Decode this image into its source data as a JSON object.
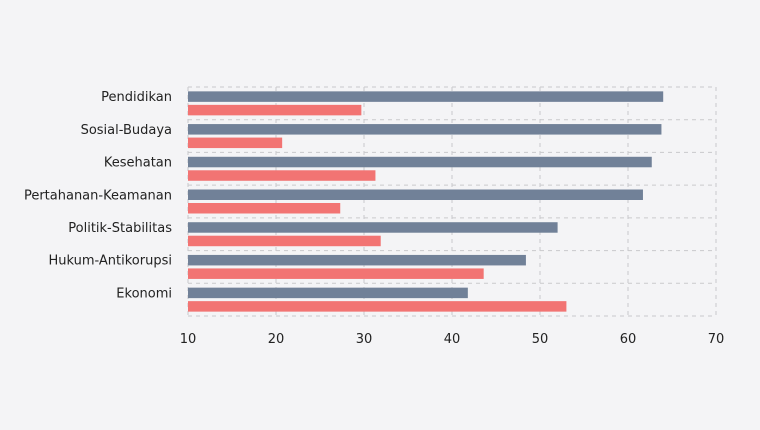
{
  "chart_data": {
    "type": "bar",
    "orientation": "horizontal",
    "categories": [
      "Pendidikan",
      "Sosial-Budaya",
      "Kesehatan",
      "Pertahanan-Keamanan",
      "Politik-Stabilitas",
      "Hukum-Antikorupsi",
      "Ekonomi"
    ],
    "series": [
      {
        "color": "#718198",
        "values": [
          64.0,
          63.8,
          62.7,
          61.7,
          52.0,
          48.4,
          41.8
        ]
      },
      {
        "color": "#f27473",
        "values": [
          29.7,
          20.7,
          31.3,
          27.3,
          31.9,
          43.6,
          53.0
        ]
      }
    ],
    "xlim": [
      10,
      70
    ],
    "xticks": [
      10,
      20,
      30,
      40,
      50,
      60,
      70
    ],
    "grid": true,
    "title": "",
    "xlabel": "",
    "ylabel": ""
  }
}
